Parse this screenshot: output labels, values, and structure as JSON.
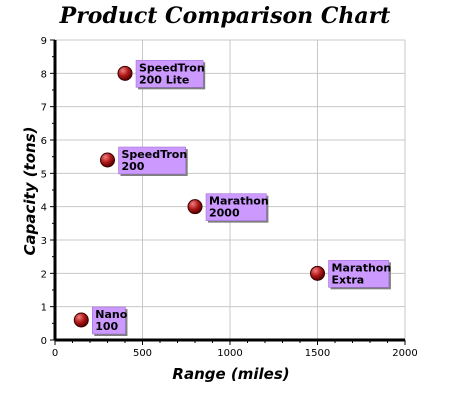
{
  "chart_data": {
    "type": "scatter",
    "title": "Product Comparison Chart",
    "xlabel": "Range (miles)",
    "ylabel": "Capacity (tons)",
    "xlim": [
      0,
      2000
    ],
    "ylim": [
      0,
      9
    ],
    "xticks": [
      "0",
      "500",
      "1000",
      "1500",
      "2000"
    ],
    "yticks": [
      "0",
      "1",
      "2",
      "3",
      "4",
      "5",
      "6",
      "7",
      "8",
      "9"
    ],
    "grid": true,
    "points": [
      {
        "x": 150,
        "y": 0.6,
        "label_lines": [
          "Nano",
          "100"
        ]
      },
      {
        "x": 300,
        "y": 5.4,
        "label_lines": [
          "SpeedTron",
          "200"
        ]
      },
      {
        "x": 400,
        "y": 8,
        "label_lines": [
          "SpeedTron",
          "200 Lite"
        ]
      },
      {
        "x": 800,
        "y": 4,
        "label_lines": [
          "Marathon",
          "2000"
        ]
      },
      {
        "x": 1500,
        "y": 2,
        "label_lines": [
          "Marathon",
          "Extra"
        ]
      }
    ],
    "colors": {
      "marker": "#b01818",
      "marker_highlight": "#f08080",
      "label_box": "#cc99ff",
      "grid": "#c8c8c8",
      "axis": "#000000"
    }
  }
}
